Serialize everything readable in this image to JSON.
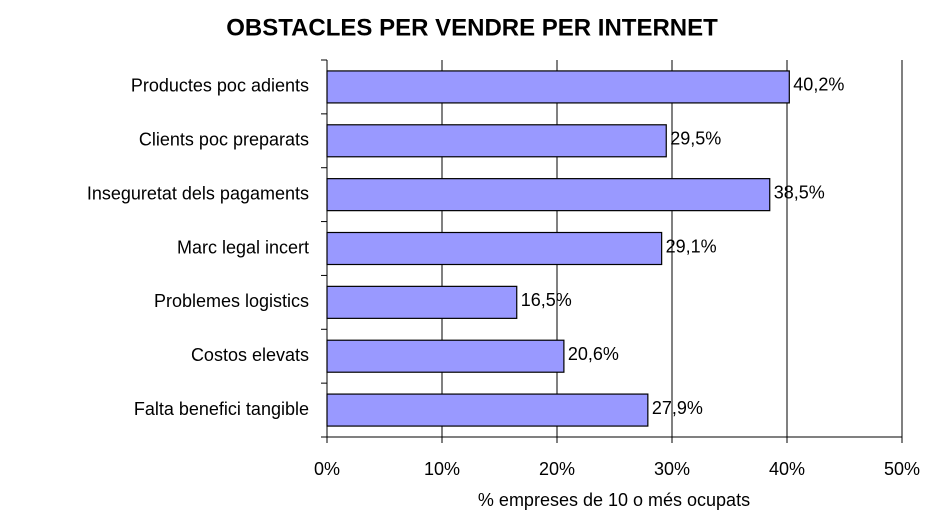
{
  "chart_data": {
    "type": "bar",
    "orientation": "horizontal",
    "title": "OBSTACLES PER VENDRE PER INTERNET",
    "xlabel": "% empreses de 10 o més ocupats",
    "categories": [
      "Productes poc adients",
      "Clients poc preparats",
      "Inseguretat dels pagaments",
      "Marc legal incert",
      "Problemes logistics",
      "Costos elevats",
      "Falta benefici tangible"
    ],
    "values": [
      40.2,
      29.5,
      38.5,
      29.1,
      16.5,
      20.6,
      27.9
    ],
    "value_labels": [
      "40,2%",
      "29,5%",
      "38,5%",
      "29,1%",
      "16,5%",
      "20,6%",
      "27,9%"
    ],
    "color": "#9999ff",
    "xlim": [
      0,
      50
    ],
    "xticks": [
      {
        "value": 0,
        "label": "0%"
      },
      {
        "value": 10,
        "label": "10%"
      },
      {
        "value": 20,
        "label": "20%"
      },
      {
        "value": 30,
        "label": "30%"
      },
      {
        "value": 40,
        "label": "40%"
      },
      {
        "value": 50,
        "label": "50%"
      }
    ],
    "grid": true
  }
}
